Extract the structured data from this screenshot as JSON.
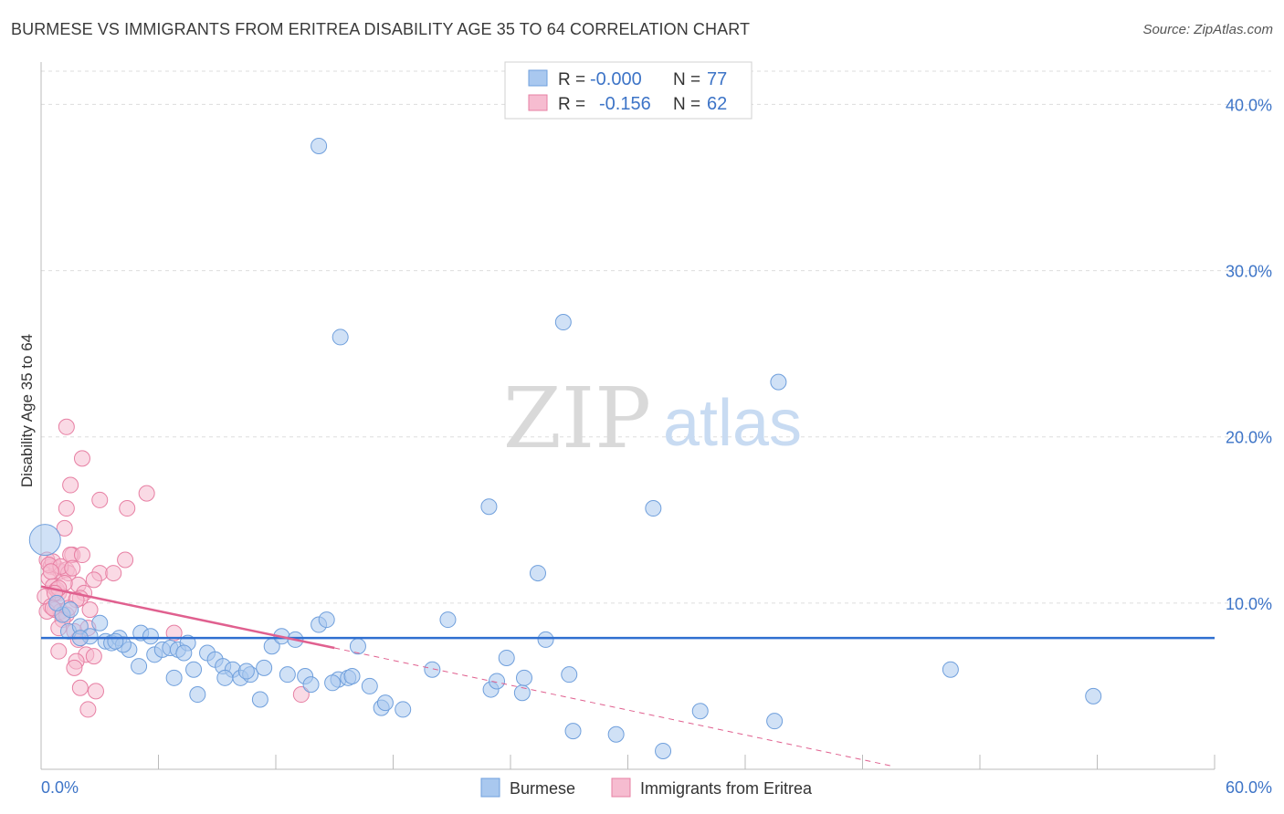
{
  "header": {
    "title": "BURMESE VS IMMIGRANTS FROM ERITREA DISABILITY AGE 35 TO 64 CORRELATION CHART",
    "source": "Source: ZipAtlas.com"
  },
  "watermark": {
    "zip": "ZIP",
    "atlas": "atlas"
  },
  "colors": {
    "blue_fill": "#a9c8ef",
    "blue_stroke": "#6f9fdc",
    "blue_line": "#2f6fd0",
    "pink_fill": "#f6bcd0",
    "pink_stroke": "#e77fa3",
    "pink_line": "#e0608f",
    "tick_text": "#3d74c7",
    "grid": "#dddddd"
  },
  "legend_stats": [
    {
      "r_label": "R =",
      "r_value": "-0.000",
      "n_label": "N =",
      "n_value": "77"
    },
    {
      "r_label": "R =",
      "r_value": "-0.156",
      "n_label": "N =",
      "n_value": "62"
    }
  ],
  "chart_data": {
    "type": "scatter",
    "title": "BURMESE VS IMMIGRANTS FROM ERITREA DISABILITY AGE 35 TO 64 CORRELATION CHART",
    "xlabel": "",
    "ylabel": "Disability Age 35 to 64",
    "xlim": [
      0,
      60
    ],
    "ylim": [
      0,
      42
    ],
    "x_tick_labels": [
      "0.0%",
      "60.0%"
    ],
    "y_ticks": [
      10,
      20,
      30,
      40
    ],
    "y_tick_labels": [
      "10.0%",
      "20.0%",
      "30.0%",
      "40.0%"
    ],
    "grid": true,
    "legend_position": "bottom",
    "series": [
      {
        "name": "Burmese",
        "color": "#a9c8ef",
        "points": [
          [
            0.2,
            13.8
          ],
          [
            14.2,
            37.5
          ],
          [
            15.3,
            26.0
          ],
          [
            26.7,
            26.9
          ],
          [
            37.7,
            23.3
          ],
          [
            22.9,
            15.8
          ],
          [
            31.3,
            15.7
          ],
          [
            25.4,
            11.8
          ],
          [
            1.1,
            9.3
          ],
          [
            1.4,
            8.3
          ],
          [
            2.0,
            8.6
          ],
          [
            3.0,
            8.8
          ],
          [
            2.5,
            8.0
          ],
          [
            3.3,
            7.7
          ],
          [
            3.6,
            7.6
          ],
          [
            4.0,
            7.9
          ],
          [
            4.5,
            7.2
          ],
          [
            4.2,
            7.5
          ],
          [
            5.1,
            8.2
          ],
          [
            5.6,
            8.0
          ],
          [
            5.0,
            6.2
          ],
          [
            5.8,
            6.9
          ],
          [
            6.2,
            7.2
          ],
          [
            6.6,
            7.3
          ],
          [
            7.0,
            7.2
          ],
          [
            7.5,
            7.6
          ],
          [
            7.8,
            6.0
          ],
          [
            8.5,
            7.0
          ],
          [
            8.9,
            6.6
          ],
          [
            9.3,
            6.2
          ],
          [
            9.8,
            6.0
          ],
          [
            10.2,
            5.5
          ],
          [
            10.7,
            5.7
          ],
          [
            11.4,
            6.1
          ],
          [
            11.8,
            7.4
          ],
          [
            12.3,
            8.0
          ],
          [
            13.0,
            7.8
          ],
          [
            13.5,
            5.6
          ],
          [
            13.8,
            5.1
          ],
          [
            14.2,
            8.7
          ],
          [
            14.6,
            9.0
          ],
          [
            15.2,
            5.4
          ],
          [
            15.7,
            5.5
          ],
          [
            16.2,
            7.4
          ],
          [
            16.8,
            5.0
          ],
          [
            17.4,
            3.7
          ],
          [
            17.6,
            4.0
          ],
          [
            18.5,
            3.6
          ],
          [
            20.0,
            6.0
          ],
          [
            20.8,
            9.0
          ],
          [
            23.0,
            4.8
          ],
          [
            23.3,
            5.3
          ],
          [
            23.8,
            6.7
          ],
          [
            24.6,
            4.6
          ],
          [
            24.7,
            5.5
          ],
          [
            25.8,
            7.8
          ],
          [
            27.0,
            5.7
          ],
          [
            27.2,
            2.3
          ],
          [
            29.4,
            2.1
          ],
          [
            31.8,
            1.1
          ],
          [
            33.7,
            3.5
          ],
          [
            37.5,
            2.9
          ],
          [
            46.5,
            6.0
          ],
          [
            53.8,
            4.4
          ],
          [
            2.0,
            7.9
          ],
          [
            3.8,
            7.7
          ],
          [
            8.0,
            4.5
          ],
          [
            9.4,
            5.5
          ],
          [
            12.6,
            5.7
          ],
          [
            11.2,
            4.2
          ],
          [
            14.9,
            5.2
          ],
          [
            15.9,
            5.6
          ],
          [
            6.8,
            5.5
          ],
          [
            7.3,
            7.0
          ],
          [
            10.5,
            5.9
          ],
          [
            0.8,
            10.0
          ],
          [
            1.5,
            9.6
          ]
        ]
      },
      {
        "name": "Immigrants from Eritrea",
        "color": "#f6bcd0",
        "points": [
          [
            1.3,
            20.6
          ],
          [
            2.1,
            18.7
          ],
          [
            1.5,
            17.1
          ],
          [
            5.4,
            16.6
          ],
          [
            3.0,
            16.2
          ],
          [
            4.4,
            15.7
          ],
          [
            1.3,
            15.7
          ],
          [
            1.2,
            14.5
          ],
          [
            0.3,
            12.6
          ],
          [
            0.5,
            12.2
          ],
          [
            0.8,
            12.1
          ],
          [
            1.0,
            11.9
          ],
          [
            1.3,
            12.0
          ],
          [
            1.6,
            12.9
          ],
          [
            1.5,
            12.9
          ],
          [
            4.3,
            12.6
          ],
          [
            3.0,
            11.8
          ],
          [
            3.7,
            11.8
          ],
          [
            0.4,
            11.5
          ],
          [
            0.6,
            11.0
          ],
          [
            0.9,
            10.6
          ],
          [
            1.1,
            10.4
          ],
          [
            1.9,
            11.1
          ],
          [
            2.2,
            10.6
          ],
          [
            2.0,
            10.3
          ],
          [
            0.2,
            10.4
          ],
          [
            0.5,
            9.8
          ],
          [
            0.7,
            9.6
          ],
          [
            1.0,
            9.5
          ],
          [
            1.3,
            9.3
          ],
          [
            1.1,
            9.0
          ],
          [
            0.3,
            9.5
          ],
          [
            1.7,
            8.3
          ],
          [
            0.9,
            8.5
          ],
          [
            1.9,
            7.8
          ],
          [
            0.9,
            7.1
          ],
          [
            2.3,
            6.9
          ],
          [
            2.7,
            6.8
          ],
          [
            1.8,
            6.5
          ],
          [
            1.7,
            6.1
          ],
          [
            2.0,
            4.9
          ],
          [
            2.8,
            4.7
          ],
          [
            2.4,
            3.6
          ],
          [
            13.3,
            4.5
          ],
          [
            6.8,
            8.2
          ],
          [
            2.5,
            9.6
          ],
          [
            0.6,
            12.5
          ],
          [
            1.4,
            11.8
          ],
          [
            0.8,
            10.8
          ],
          [
            0.4,
            12.3
          ],
          [
            1.2,
            11.2
          ],
          [
            0.9,
            10.9
          ],
          [
            1.8,
            10.2
          ],
          [
            2.1,
            12.9
          ],
          [
            0.6,
            9.7
          ],
          [
            1.4,
            9.7
          ],
          [
            2.4,
            8.5
          ],
          [
            2.7,
            11.4
          ],
          [
            0.7,
            10.6
          ],
          [
            1.0,
            12.2
          ],
          [
            1.6,
            12.1
          ],
          [
            0.5,
            11.9
          ]
        ]
      }
    ],
    "trend_lines": [
      {
        "series": "Burmese",
        "x": [
          0,
          60
        ],
        "y": [
          7.9,
          7.9
        ],
        "style": "solid"
      },
      {
        "series": "Immigrants from Eritrea",
        "x": [
          0,
          15
        ],
        "y": [
          11.0,
          7.3
        ],
        "style": "solid"
      },
      {
        "series": "Immigrants from Eritrea",
        "x": [
          15,
          43.5
        ],
        "y": [
          7.3,
          0.2
        ],
        "style": "dashed"
      }
    ]
  }
}
